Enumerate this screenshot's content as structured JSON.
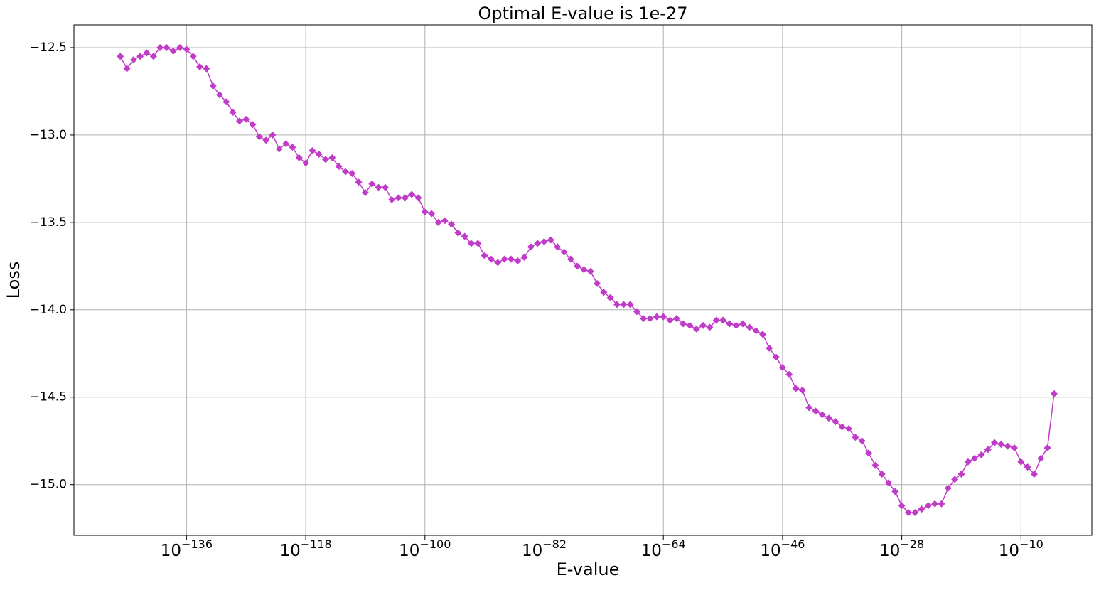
{
  "chart_data": {
    "type": "line",
    "title": "Optimal E-value is 1e-27",
    "xlabel": "E-value",
    "ylabel": "Loss",
    "log_x": true,
    "grid": true,
    "color": "#c03cc8",
    "marker": "diamond",
    "xlim": [
      1e-153,
      5
    ],
    "ylim": [
      -15.29,
      -12.37
    ],
    "xticks": [
      {
        "value": 1e-136,
        "label": "10−136"
      },
      {
        "value": 1e-118,
        "label": "10−118"
      },
      {
        "value": 1e-100,
        "label": "10−100"
      },
      {
        "value": 1e-82,
        "label": "10−82"
      },
      {
        "value": 1e-64,
        "label": "10−64"
      },
      {
        "value": 1e-46,
        "label": "10−46"
      },
      {
        "value": 1e-28,
        "label": "10−28"
      },
      {
        "value": 1e-10,
        "label": "10−10"
      }
    ],
    "yticks": [
      {
        "value": -12.5,
        "label": "−12.5"
      },
      {
        "value": -13.0,
        "label": "−13.0"
      },
      {
        "value": -13.5,
        "label": "−13.5"
      },
      {
        "value": -14.0,
        "label": "−14.0"
      },
      {
        "value": -14.5,
        "label": "−14.5"
      },
      {
        "value": -15.0,
        "label": "−15.0"
      }
    ],
    "x": [
      1e-146,
      1e-145,
      1e-144,
      1e-143,
      1e-142,
      1e-141,
      1e-140,
      1e-139,
      1e-138,
      1e-137,
      1e-136,
      1e-135,
      1e-134,
      1e-133,
      1e-132,
      1e-131,
      1e-130,
      1e-129,
      1e-128,
      1e-127,
      1e-126,
      1e-125,
      1e-124,
      1e-123,
      1e-122,
      1e-121,
      1e-120,
      1e-119,
      1e-118,
      1e-117,
      1e-116,
      1e-115,
      1e-114,
      1e-113,
      1e-112,
      1e-111,
      1e-110,
      1e-109,
      1e-108,
      1e-107,
      1e-106,
      1e-105,
      1e-104,
      1e-103,
      1e-102,
      1e-101,
      1e-100,
      1e-99,
      1e-98,
      1e-97,
      1e-96,
      1e-95,
      1e-94,
      1e-93,
      1e-92,
      1e-91,
      1e-90,
      1e-89,
      1e-88,
      1e-87,
      1e-86,
      1e-85,
      1e-84,
      1e-83,
      1e-82,
      1e-81,
      1e-80,
      1e-79,
      1e-78,
      1e-77,
      1e-76,
      1e-75,
      1e-74,
      1e-73,
      1e-72,
      1e-71,
      1e-70,
      1e-69,
      1e-68,
      1e-67,
      1e-66,
      1e-65,
      1e-64,
      1e-63,
      1e-62,
      1e-61,
      1e-60,
      1e-59,
      1e-58,
      1e-57,
      1e-56,
      1e-55,
      1e-54,
      1e-53,
      1e-52,
      1e-51,
      1e-50,
      1e-49,
      1e-48,
      1e-47,
      1e-46,
      1e-45,
      1e-44,
      1e-43,
      1e-42,
      1e-41,
      1e-40,
      1e-39,
      1e-38,
      1e-37,
      1e-36,
      1e-35,
      1e-34,
      1e-33,
      1e-32,
      1e-31,
      1e-30,
      1e-29,
      1e-28,
      1e-27,
      1e-26,
      1e-25,
      1e-24,
      1e-23,
      1e-22,
      1e-21,
      1e-20,
      1e-19,
      1e-18,
      1e-17,
      1e-16,
      1e-15,
      1e-14,
      1e-13,
      1e-12,
      1e-11,
      1e-10,
      1e-09,
      1e-08,
      1e-07,
      1e-06,
      1e-05
    ],
    "values": [
      -12.55,
      -12.62,
      -12.57,
      -12.55,
      -12.53,
      -12.55,
      -12.5,
      -12.5,
      -12.52,
      -12.5,
      -12.51,
      -12.55,
      -12.61,
      -12.62,
      -12.72,
      -12.77,
      -12.81,
      -12.87,
      -12.92,
      -12.91,
      -12.94,
      -13.01,
      -13.03,
      -13.0,
      -13.08,
      -13.05,
      -13.07,
      -13.13,
      -13.16,
      -13.09,
      -13.11,
      -13.14,
      -13.13,
      -13.18,
      -13.21,
      -13.22,
      -13.27,
      -13.33,
      -13.28,
      -13.3,
      -13.3,
      -13.37,
      -13.36,
      -13.36,
      -13.34,
      -13.36,
      -13.44,
      -13.45,
      -13.5,
      -13.49,
      -13.51,
      -13.56,
      -13.58,
      -13.62,
      -13.62,
      -13.69,
      -13.71,
      -13.73,
      -13.71,
      -13.71,
      -13.72,
      -13.7,
      -13.64,
      -13.62,
      -13.61,
      -13.6,
      -13.64,
      -13.67,
      -13.71,
      -13.75,
      -13.77,
      -13.78,
      -13.85,
      -13.9,
      -13.93,
      -13.97,
      -13.97,
      -13.97,
      -14.01,
      -14.05,
      -14.05,
      -14.04,
      -14.04,
      -14.06,
      -14.05,
      -14.08,
      -14.09,
      -14.11,
      -14.09,
      -14.1,
      -14.06,
      -14.06,
      -14.08,
      -14.09,
      -14.08,
      -14.1,
      -14.12,
      -14.14,
      -14.22,
      -14.27,
      -14.33,
      -14.37,
      -14.45,
      -14.46,
      -14.56,
      -14.58,
      -14.6,
      -14.62,
      -14.64,
      -14.67,
      -14.68,
      -14.73,
      -14.75,
      -14.82,
      -14.89,
      -14.94,
      -14.99,
      -15.04,
      -15.12,
      -15.16,
      -15.16,
      -15.14,
      -15.12,
      -15.11,
      -15.11,
      -15.02,
      -14.97,
      -14.94,
      -14.87,
      -14.85,
      -14.83,
      -14.8,
      -14.76,
      -14.77,
      -14.78,
      -14.79,
      -14.87,
      -14.9,
      -14.94,
      -14.85,
      -14.79,
      -14.48
    ]
  }
}
